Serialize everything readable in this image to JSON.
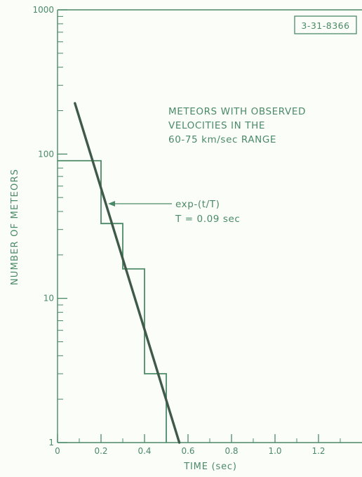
{
  "chart_data": {
    "type": "line",
    "ink_color": "#4a8a66",
    "fit_color": "#3f5a48",
    "tag": "3-31-8366",
    "xlabel": "TIME (sec)",
    "ylabel": "NUMBER OF METEORS",
    "xlim": [
      0,
      1.4
    ],
    "ylim": [
      1,
      1000
    ],
    "yscale": "log",
    "x_ticks": [
      "0",
      "0.2",
      "0.4",
      "0.6",
      "0.8",
      "1.0",
      "1.2"
    ],
    "x_tick_values": [
      0,
      0.2,
      0.4,
      0.6,
      0.8,
      1.0,
      1.2
    ],
    "y_ticks": [
      "1",
      "10",
      "100",
      "1000"
    ],
    "y_tick_values": [
      1,
      10,
      100,
      1000
    ],
    "legend_lines": [
      "METEORS WITH OBSERVED",
      "VELOCITIES IN THE",
      "60-75 km/sec RANGE"
    ],
    "fit_label_lines": [
      "exp-(t/T)",
      "T = 0.09 sec"
    ],
    "series": [
      {
        "kind": "step",
        "x": [
          0,
          0.2,
          0.3,
          0.4,
          0.5
        ],
        "values": [
          90,
          33,
          16,
          3,
          1
        ]
      },
      {
        "kind": "fit",
        "x": [
          0.08,
          0.56
        ],
        "values": [
          225,
          1
        ]
      }
    ]
  }
}
